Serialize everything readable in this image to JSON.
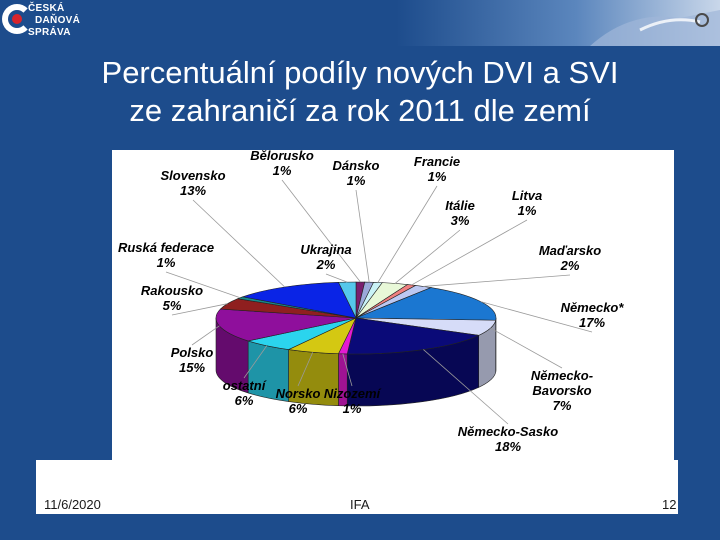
{
  "header": {
    "logo_lines": [
      "ČESKÁ",
      "DAŇOVÁ",
      "SPRÁVA"
    ]
  },
  "title": {
    "line1": "Percentuální podíly nových DVI a SVI",
    "line2": "ze zahraničí za rok 2011 dle zemí"
  },
  "footer": {
    "date": "11/6/2020",
    "center": "IFA",
    "page": "12"
  },
  "colors": {
    "background": "#1d4c8c",
    "chart_area": "#ffffff"
  },
  "chart_data": {
    "type": "pie",
    "title": "",
    "three_d": true,
    "slices": [
      {
        "label": "Bělorusko",
        "value": 1,
        "display": "1%",
        "color": "#7a1f6e"
      },
      {
        "label": "Dánsko",
        "value": 1,
        "display": "1%",
        "color": "#9aa9d9"
      },
      {
        "label": "Francie",
        "value": 1,
        "display": "1%",
        "color": "#c9f2f6"
      },
      {
        "label": "Itálie",
        "value": 3,
        "display": "3%",
        "color": "#e8f8d8"
      },
      {
        "label": "Litva",
        "value": 1,
        "display": "1%",
        "color": "#f08080"
      },
      {
        "label": "Maďarsko",
        "value": 2,
        "display": "2%",
        "color": "#bcc8f2"
      },
      {
        "label": "Německo*",
        "value": 17,
        "display": "17%",
        "color": "#1b77d1"
      },
      {
        "label": "Německo-Bavorsko",
        "value": 7,
        "display": "7%",
        "color": "#d6dcf8"
      },
      {
        "label": "Německo-Sasko",
        "value": 18,
        "display": "18%",
        "color": "#0a0a78"
      },
      {
        "label": "Nizozemí",
        "value": 1,
        "display": "1%",
        "color": "#e31bd2"
      },
      {
        "label": "Norsko",
        "value": 6,
        "display": "6%",
        "color": "#d4c812"
      },
      {
        "label": "ostatní",
        "value": 6,
        "display": "6%",
        "color": "#2bd4ee"
      },
      {
        "label": "Polsko",
        "value": 15,
        "display": "15%",
        "color": "#8f0f9c"
      },
      {
        "label": "Rakousko",
        "value": 5,
        "display": "5%",
        "color": "#8f1f1f"
      },
      {
        "label": "Ruská federace",
        "value": 1,
        "display": "1%",
        "color": "#188a8a"
      },
      {
        "label": "Slovensko",
        "value": 13,
        "display": "13%",
        "color": "#0a24e6"
      },
      {
        "label": "Ukrajina",
        "value": 2,
        "display": "2%",
        "color": "#55c8ec"
      }
    ]
  }
}
